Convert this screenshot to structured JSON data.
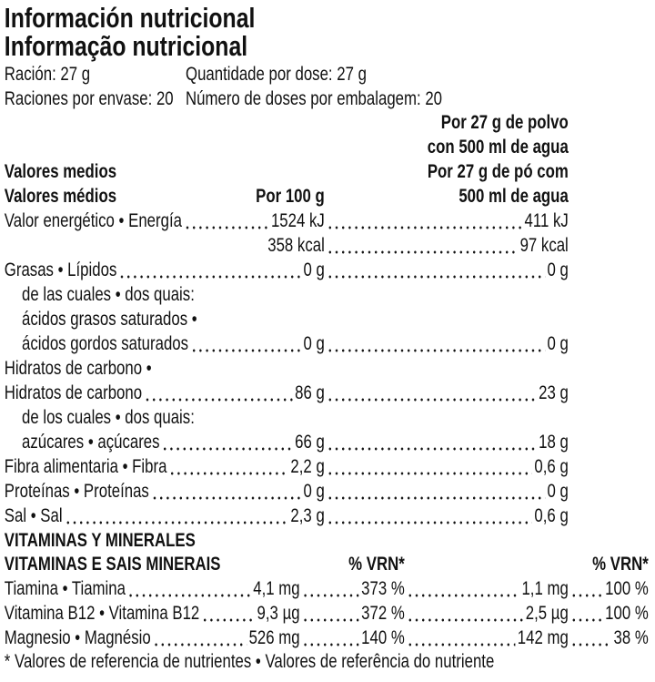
{
  "title": [
    "Información nutricional",
    "Informação nutricional"
  ],
  "serving": [
    [
      "Ración: 27 g",
      "Quantidade por dose: 27 g"
    ],
    [
      "Raciones por envase: 20",
      "Número de doses por embalagem: 20"
    ]
  ],
  "table": {
    "label_header": [
      "Valores medios",
      "Valores médios"
    ],
    "col_100g": "Por 100 g",
    "col_serving": [
      "Por 27 g de polvo",
      "con 500 ml de agua",
      "Por 27 g de pó com",
      "500 ml de agua"
    ],
    "rows": [
      {
        "label": "Valor energético • Energía",
        "per_100g": "1524 kJ",
        "per_serving": "411 kJ"
      },
      {
        "per_100g": "358 kcal",
        "per_serving": "97 kcal"
      },
      {
        "label": "Grasas • Lípidos",
        "per_100g": "0 g",
        "per_serving": "0 g"
      },
      {
        "label": "de las cuales • dos quais:",
        "indent": true
      },
      {
        "label": "ácidos grasos saturados •",
        "indent": true
      },
      {
        "label": "ácidos gordos saturados",
        "indent": true,
        "per_100g": "0 g",
        "per_serving": "0 g"
      },
      {
        "label": "Hidratos de carbono •"
      },
      {
        "label": "Hidratos de carbono",
        "per_100g": "86 g",
        "per_serving": "23 g"
      },
      {
        "label": "de los cuales • dos quais:",
        "indent": true
      },
      {
        "label": "azúcares • açúcares",
        "indent": true,
        "per_100g": "66 g",
        "per_serving": "18 g"
      },
      {
        "label": "Fibra alimentaria • Fibra",
        "per_100g": "2,2 g",
        "per_serving": "0,6 g"
      },
      {
        "label": "Proteínas • Proteínas",
        "per_100g": "0 g",
        "per_serving": "0 g"
      },
      {
        "label": "Sal • Sal",
        "per_100g": "2,3 g",
        "per_serving": "0,6 g"
      }
    ]
  },
  "vitamins": {
    "heading": [
      "VITAMINAS Y MINERALES",
      "VITAMINAS E SAIS MINERAIS"
    ],
    "vrn_header": "% VRN*",
    "rows": [
      {
        "label": "Tiamina • Tiamina",
        "per_100g": "4,1 mg",
        "vrn_100g": "373 %",
        "per_serving": "1,1 mg",
        "vrn_serving": "100 %"
      },
      {
        "label": "Vitamina B12 • Vitamina B12",
        "per_100g": "9,3 µg",
        "vrn_100g": "372 %",
        "per_serving": "2,5 µg",
        "vrn_serving": "100 %"
      },
      {
        "label": "Magnesio • Magnésio",
        "per_100g": "526 mg",
        "vrn_100g": "140 %",
        "per_serving": "142 mg",
        "vrn_serving": "38 %"
      }
    ]
  },
  "footnote": "* Valores de referencia de nutrientes • Valores de referência do nutriente"
}
